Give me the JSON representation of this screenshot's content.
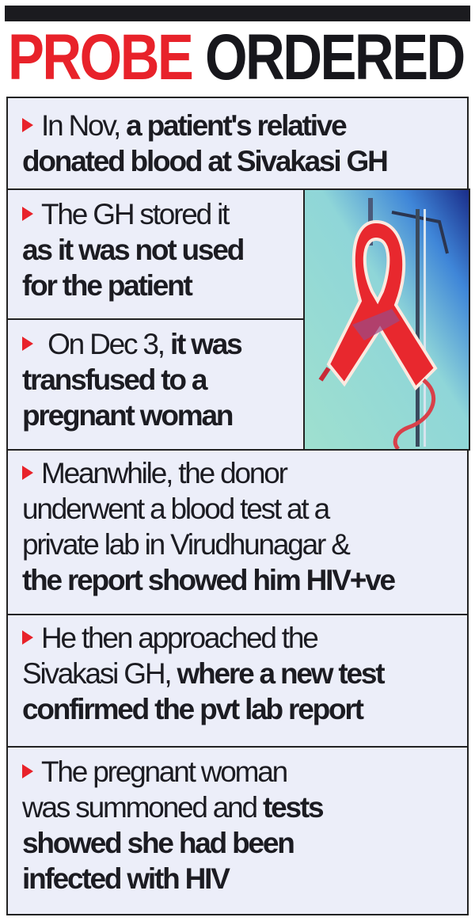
{
  "header": {
    "title_red": "PROBE",
    "title_dark": "ORDERED"
  },
  "colors": {
    "accent": "#e8222a",
    "text": "#1c1c22",
    "box_bg": "#eceef9"
  },
  "image": {
    "icon": "red-ribbon-blood-bag-icon"
  },
  "items": [
    {
      "lines": [
        [
          {
            "text": "In Nov,",
            "bold": false
          },
          {
            "text": " a patient's relative",
            "bold": true
          }
        ],
        [
          {
            "text": "donated blood at Sivakasi GH",
            "bold": true
          }
        ]
      ]
    },
    {
      "lines": [
        [
          {
            "text": "The GH stored it",
            "bold": false
          }
        ],
        [
          {
            "text": "as it was not used",
            "bold": true
          }
        ],
        [
          {
            "text": "for the patient",
            "bold": true
          }
        ]
      ]
    },
    {
      "lines": [
        [
          {
            "text": " On Dec 3,",
            "bold": false
          },
          {
            "text": " it was",
            "bold": true
          }
        ],
        [
          {
            "text": "transfused to a",
            "bold": true
          }
        ],
        [
          {
            "text": "pregnant woman",
            "bold": true
          }
        ]
      ]
    },
    {
      "lines": [
        [
          {
            "text": "Meanwhile, the donor",
            "bold": false
          }
        ],
        [
          {
            "text": "underwent a blood test at a",
            "bold": false
          }
        ],
        [
          {
            "text": "private lab in Virudhunagar &",
            "bold": false
          }
        ],
        [
          {
            "text": "the report showed him HIV+ve",
            "bold": true
          }
        ]
      ]
    },
    {
      "lines": [
        [
          {
            "text": "He then approached the",
            "bold": false
          }
        ],
        [
          {
            "text": "Sivakasi GH,",
            "bold": false
          },
          {
            "text": " where a new test",
            "bold": true
          }
        ],
        [
          {
            "text": "confirmed the pvt lab report",
            "bold": true
          }
        ]
      ]
    },
    {
      "lines": [
        [
          {
            "text": "The pregnant woman",
            "bold": false
          }
        ],
        [
          {
            "text": "was summoned and ",
            "bold": false
          },
          {
            "text": "tests",
            "bold": true
          }
        ],
        [
          {
            "text": "showed she had been",
            "bold": true
          }
        ],
        [
          {
            "text": "infected with HIV",
            "bold": true
          }
        ]
      ]
    }
  ]
}
